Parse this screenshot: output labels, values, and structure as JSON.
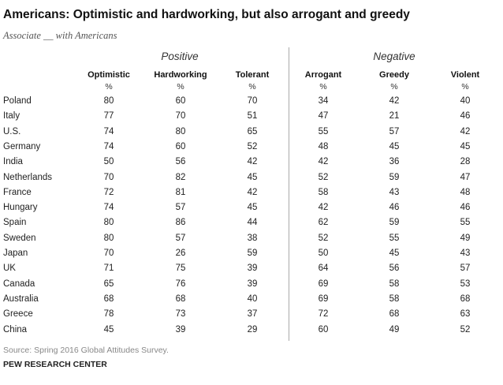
{
  "title": "Americans: Optimistic and hardworking, but also arrogant and greedy",
  "subtitle": "Associate __ with Americans",
  "groups": {
    "positive": "Positive",
    "negative": "Negative"
  },
  "unit": "%",
  "source": "Source: Spring 2016 Global Attitudes Survey.",
  "brand": "PEW RESEARCH CENTER",
  "chart_data": {
    "type": "table",
    "title": "Americans: Optimistic and hardworking, but also arrogant and greedy",
    "subtitle": "Associate __ with Americans",
    "columns": [
      "Optimistic",
      "Hardworking",
      "Tolerant",
      "Arrogant",
      "Greedy",
      "Violent"
    ],
    "column_groups": [
      {
        "name": "Positive",
        "columns": [
          "Optimistic",
          "Hardworking",
          "Tolerant"
        ]
      },
      {
        "name": "Negative",
        "columns": [
          "Arrogant",
          "Greedy",
          "Violent"
        ]
      }
    ],
    "rows": [
      {
        "country": "Poland",
        "values": [
          80,
          60,
          70,
          34,
          42,
          40
        ]
      },
      {
        "country": "Italy",
        "values": [
          77,
          70,
          51,
          47,
          21,
          46
        ]
      },
      {
        "country": "U.S.",
        "values": [
          74,
          80,
          65,
          55,
          57,
          42
        ]
      },
      {
        "country": "Germany",
        "values": [
          74,
          60,
          52,
          48,
          45,
          45
        ]
      },
      {
        "country": "India",
        "values": [
          50,
          56,
          42,
          42,
          36,
          28
        ]
      },
      {
        "country": "Netherlands",
        "values": [
          70,
          82,
          45,
          52,
          59,
          47
        ]
      },
      {
        "country": "France",
        "values": [
          72,
          81,
          42,
          58,
          43,
          48
        ]
      },
      {
        "country": "Hungary",
        "values": [
          74,
          57,
          45,
          42,
          46,
          46
        ]
      },
      {
        "country": "Spain",
        "values": [
          80,
          86,
          44,
          62,
          59,
          55
        ]
      },
      {
        "country": "Sweden",
        "values": [
          80,
          57,
          38,
          52,
          55,
          49
        ]
      },
      {
        "country": "Japan",
        "values": [
          70,
          26,
          59,
          50,
          45,
          43
        ]
      },
      {
        "country": "UK",
        "values": [
          71,
          75,
          39,
          64,
          56,
          57
        ]
      },
      {
        "country": "Canada",
        "values": [
          65,
          76,
          39,
          69,
          58,
          53
        ]
      },
      {
        "country": "Australia",
        "values": [
          68,
          68,
          40,
          69,
          58,
          68
        ]
      },
      {
        "country": "Greece",
        "values": [
          78,
          73,
          37,
          72,
          68,
          63
        ]
      },
      {
        "country": "China",
        "values": [
          45,
          39,
          29,
          60,
          49,
          52
        ]
      }
    ]
  }
}
